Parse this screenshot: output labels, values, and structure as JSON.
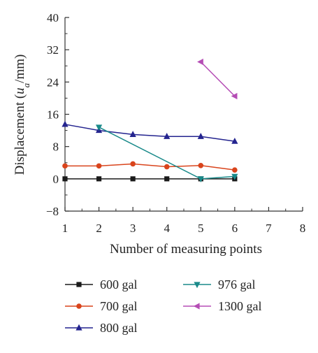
{
  "chart_data": {
    "type": "line",
    "xlabel": "Number of measuring points",
    "ylabel_parts": {
      "prefix": "Displacement (",
      "var": "u",
      "sub": "a",
      "suffix": "/mm)"
    },
    "xlim": [
      1,
      8
    ],
    "ylim": [
      -8,
      40
    ],
    "xticks": [
      "1",
      "2",
      "3",
      "4",
      "5",
      "6",
      "7",
      "8"
    ],
    "yticks": [
      "40",
      "32",
      "24",
      "16",
      "8",
      "0",
      "−8"
    ],
    "ytick_values": [
      40,
      32,
      24,
      16,
      8,
      0,
      -8
    ],
    "grid": false,
    "legend_position": "bottom",
    "series": [
      {
        "name": "600 gal",
        "color": "#1a1a1a",
        "marker": "square",
        "x": [
          1,
          2,
          3,
          4,
          5,
          6
        ],
        "y": [
          0,
          0,
          0,
          0,
          0,
          0
        ]
      },
      {
        "name": "700 gal",
        "color": "#d9441c",
        "marker": "circle",
        "x": [
          1,
          2,
          3,
          4,
          5,
          6
        ],
        "y": [
          3.2,
          3.2,
          3.7,
          3.0,
          3.3,
          2.2
        ]
      },
      {
        "name": "800 gal",
        "color": "#24248f",
        "marker": "triangle-up",
        "x": [
          1,
          2,
          3,
          4,
          5,
          6
        ],
        "y": [
          13.5,
          12.0,
          11.0,
          10.5,
          10.5,
          9.3
        ]
      },
      {
        "name": "976 gal",
        "color": "#1a8a8a",
        "marker": "triangle-down",
        "x": [
          2,
          5,
          6
        ],
        "y": [
          12.8,
          0.0,
          0.6
        ]
      },
      {
        "name": "1300 gal",
        "color": "#b54db5",
        "marker": "triangle-left",
        "x": [
          5,
          6
        ],
        "y": [
          29.0,
          20.5
        ]
      }
    ]
  }
}
